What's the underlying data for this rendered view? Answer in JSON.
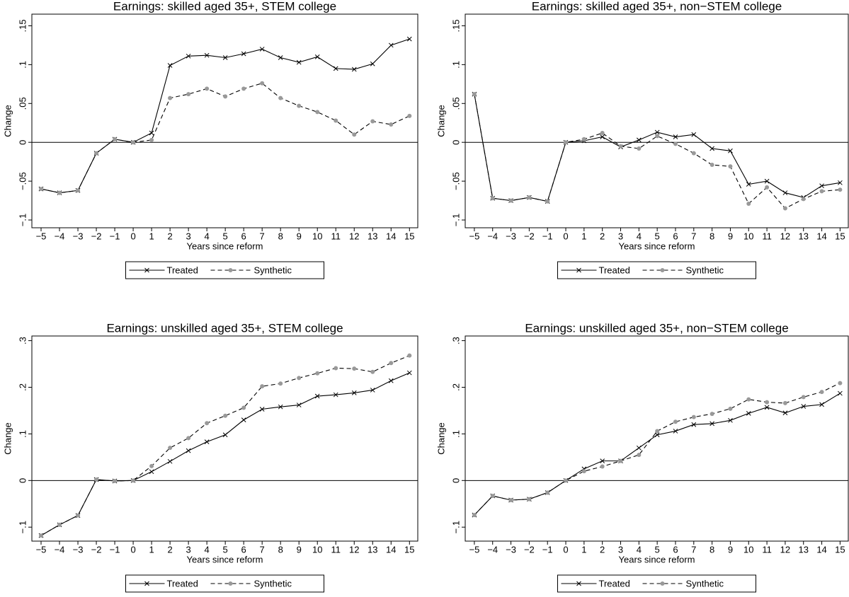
{
  "chart_data": [
    {
      "type": "line",
      "title": "Earnings: skilled aged 35+, STEM college",
      "x_label": "Years since reform",
      "y_label": "Change",
      "x": [
        -5,
        -4,
        -3,
        -2,
        -1,
        0,
        1,
        2,
        3,
        4,
        5,
        6,
        7,
        8,
        9,
        10,
        11,
        12,
        13,
        14,
        15
      ],
      "series": [
        {
          "name": "Treated",
          "color": "#000000",
          "marker_color": "#000000",
          "marker": "x",
          "linestyle": "solid",
          "values": [
            -0.06,
            -0.065,
            -0.062,
            -0.014,
            0.004,
            0,
            0.012,
            0.099,
            0.111,
            0.112,
            0.109,
            0.114,
            0.12,
            0.109,
            0.103,
            0.11,
            0.095,
            0.094,
            0.101,
            0.125,
            0.133
          ]
        },
        {
          "name": "Synthetic",
          "color": "#000000",
          "marker_color": "#999999",
          "marker": "circle",
          "linestyle": "dashed",
          "values": [
            -0.06,
            -0.065,
            -0.062,
            -0.014,
            0.004,
            0,
            0.003,
            0.057,
            0.062,
            0.069,
            0.059,
            0.069,
            0.076,
            0.057,
            0.047,
            0.039,
            0.028,
            0.01,
            0.027,
            0.023,
            0.034
          ]
        }
      ],
      "xlim": [
        -5.5,
        15.45
      ],
      "ylim": [
        -0.11,
        0.165
      ],
      "xticks": [
        {
          "value": -5,
          "label": "−5"
        },
        {
          "value": -4,
          "label": "−4"
        },
        {
          "value": -3,
          "label": "−3"
        },
        {
          "value": -2,
          "label": "−2"
        },
        {
          "value": -1,
          "label": "−1"
        },
        0,
        1,
        2,
        3,
        4,
        5,
        6,
        7,
        8,
        9,
        10,
        11,
        12,
        13,
        14,
        15
      ],
      "yticks": [
        {
          "value": -0.1,
          "label": "−.1"
        },
        {
          "value": -0.05,
          "label": "−.05"
        },
        0,
        {
          "value": 0.05,
          "label": ".05"
        },
        {
          "value": 0.1,
          "label": ".1"
        },
        {
          "value": 0.15,
          "label": ".15"
        }
      ],
      "reference_line": 0,
      "legend": "bottom"
    },
    {
      "type": "line",
      "title": "Earnings: skilled aged 35+, non−STEM college",
      "x_label": "Years since reform",
      "y_label": "Change",
      "x": [
        -5,
        -4,
        -3,
        -2,
        -1,
        0,
        1,
        2,
        3,
        4,
        5,
        6,
        7,
        8,
        9,
        10,
        11,
        12,
        13,
        14,
        15
      ],
      "series": [
        {
          "name": "Treated",
          "color": "#000000",
          "marker_color": "#000000",
          "marker": "x",
          "linestyle": "solid",
          "values": [
            0.062,
            -0.072,
            -0.075,
            -0.071,
            -0.076,
            0,
            0.002,
            0.007,
            -0.006,
            0.003,
            0.013,
            0.007,
            0.01,
            -0.008,
            -0.011,
            -0.054,
            -0.05,
            -0.065,
            -0.071,
            -0.056,
            -0.052
          ]
        },
        {
          "name": "Synthetic",
          "color": "#000000",
          "marker_color": "#999999",
          "marker": "circle",
          "linestyle": "dashed",
          "values": [
            0.062,
            -0.072,
            -0.075,
            -0.071,
            -0.076,
            0,
            0.004,
            0.012,
            -0.005,
            -0.008,
            0.008,
            -0.002,
            -0.014,
            -0.029,
            -0.031,
            -0.079,
            -0.058,
            -0.085,
            -0.073,
            -0.063,
            -0.061
          ]
        }
      ],
      "xlim": [
        -5.5,
        15.45
      ],
      "ylim": [
        -0.11,
        0.165
      ],
      "xticks": [
        {
          "value": -5,
          "label": "−5"
        },
        {
          "value": -4,
          "label": "−4"
        },
        {
          "value": -3,
          "label": "−3"
        },
        {
          "value": -2,
          "label": "−2"
        },
        {
          "value": -1,
          "label": "−1"
        },
        0,
        1,
        2,
        3,
        4,
        5,
        6,
        7,
        8,
        9,
        10,
        11,
        12,
        13,
        14,
        15
      ],
      "yticks": [
        {
          "value": -0.1,
          "label": "−.1"
        },
        {
          "value": -0.05,
          "label": "−.05"
        },
        0,
        {
          "value": 0.05,
          "label": ".05"
        },
        {
          "value": 0.1,
          "label": ".1"
        },
        {
          "value": 0.15,
          "label": ".15"
        }
      ],
      "reference_line": 0,
      "legend": "bottom"
    },
    {
      "type": "line",
      "title": "Earnings: unskilled aged 35+, STEM college",
      "x_label": "Years since reform",
      "y_label": "Change",
      "x": [
        -5,
        -4,
        -3,
        -2,
        -1,
        0,
        1,
        2,
        3,
        4,
        5,
        6,
        7,
        8,
        9,
        10,
        11,
        12,
        13,
        14,
        15
      ],
      "series": [
        {
          "name": "Treated",
          "color": "#000000",
          "marker_color": "#000000",
          "marker": "x",
          "linestyle": "solid",
          "values": [
            -0.118,
            -0.095,
            -0.075,
            0.002,
            -0.001,
            0,
            0.019,
            0.041,
            0.064,
            0.083,
            0.098,
            0.13,
            0.153,
            0.158,
            0.162,
            0.181,
            0.184,
            0.188,
            0.194,
            0.214,
            0.231
          ]
        },
        {
          "name": "Synthetic",
          "color": "#000000",
          "marker_color": "#999999",
          "marker": "circle",
          "linestyle": "dashed",
          "values": [
            -0.118,
            -0.095,
            -0.075,
            0.002,
            -0.001,
            0,
            0.031,
            0.07,
            0.091,
            0.123,
            0.139,
            0.156,
            0.202,
            0.208,
            0.22,
            0.23,
            0.241,
            0.24,
            0.233,
            0.252,
            0.268
          ]
        }
      ],
      "xlim": [
        -5.5,
        15.45
      ],
      "ylim": [
        -0.13,
        0.31
      ],
      "xticks": [
        {
          "value": -5,
          "label": "−5"
        },
        {
          "value": -4,
          "label": "−4"
        },
        {
          "value": -3,
          "label": "−3"
        },
        {
          "value": -2,
          "label": "−2"
        },
        {
          "value": -1,
          "label": "−1"
        },
        0,
        1,
        2,
        3,
        4,
        5,
        6,
        7,
        8,
        9,
        10,
        11,
        12,
        13,
        14,
        15
      ],
      "yticks": [
        {
          "value": -0.1,
          "label": "−.1"
        },
        0,
        {
          "value": 0.1,
          "label": ".1"
        },
        {
          "value": 0.2,
          "label": ".2"
        },
        {
          "value": 0.3,
          "label": ".3"
        }
      ],
      "reference_line": 0,
      "legend": "bottom"
    },
    {
      "type": "line",
      "title": "Earnings: unskilled aged 35+, non−STEM college",
      "x_label": "Years since reform",
      "y_label": "Change",
      "x": [
        -5,
        -4,
        -3,
        -2,
        -1,
        0,
        1,
        2,
        3,
        4,
        5,
        6,
        7,
        8,
        9,
        10,
        11,
        12,
        13,
        14,
        15
      ],
      "series": [
        {
          "name": "Treated",
          "color": "#000000",
          "marker_color": "#000000",
          "marker": "x",
          "linestyle": "solid",
          "values": [
            -0.074,
            -0.033,
            -0.042,
            -0.04,
            -0.026,
            0,
            0.025,
            0.042,
            0.042,
            0.07,
            0.098,
            0.106,
            0.12,
            0.122,
            0.129,
            0.144,
            0.157,
            0.145,
            0.159,
            0.163,
            0.187
          ]
        },
        {
          "name": "Synthetic",
          "color": "#000000",
          "marker_color": "#999999",
          "marker": "circle",
          "linestyle": "dashed",
          "values": [
            -0.074,
            -0.033,
            -0.042,
            -0.04,
            -0.026,
            0,
            0.02,
            0.03,
            0.042,
            0.055,
            0.106,
            0.126,
            0.136,
            0.143,
            0.154,
            0.174,
            0.168,
            0.166,
            0.179,
            0.19,
            0.209
          ]
        }
      ],
      "xlim": [
        -5.5,
        15.45
      ],
      "ylim": [
        -0.13,
        0.31
      ],
      "xticks": [
        {
          "value": -5,
          "label": "−5"
        },
        {
          "value": -4,
          "label": "−4"
        },
        {
          "value": -3,
          "label": "−3"
        },
        {
          "value": -2,
          "label": "−2"
        },
        {
          "value": -1,
          "label": "−1"
        },
        0,
        1,
        2,
        3,
        4,
        5,
        6,
        7,
        8,
        9,
        10,
        11,
        12,
        13,
        14,
        15
      ],
      "yticks": [
        {
          "value": -0.1,
          "label": "−.1"
        },
        0,
        {
          "value": 0.1,
          "label": ".1"
        },
        {
          "value": 0.2,
          "label": ".2"
        },
        {
          "value": 0.3,
          "label": ".3"
        }
      ],
      "reference_line": 0,
      "legend": "bottom"
    }
  ]
}
